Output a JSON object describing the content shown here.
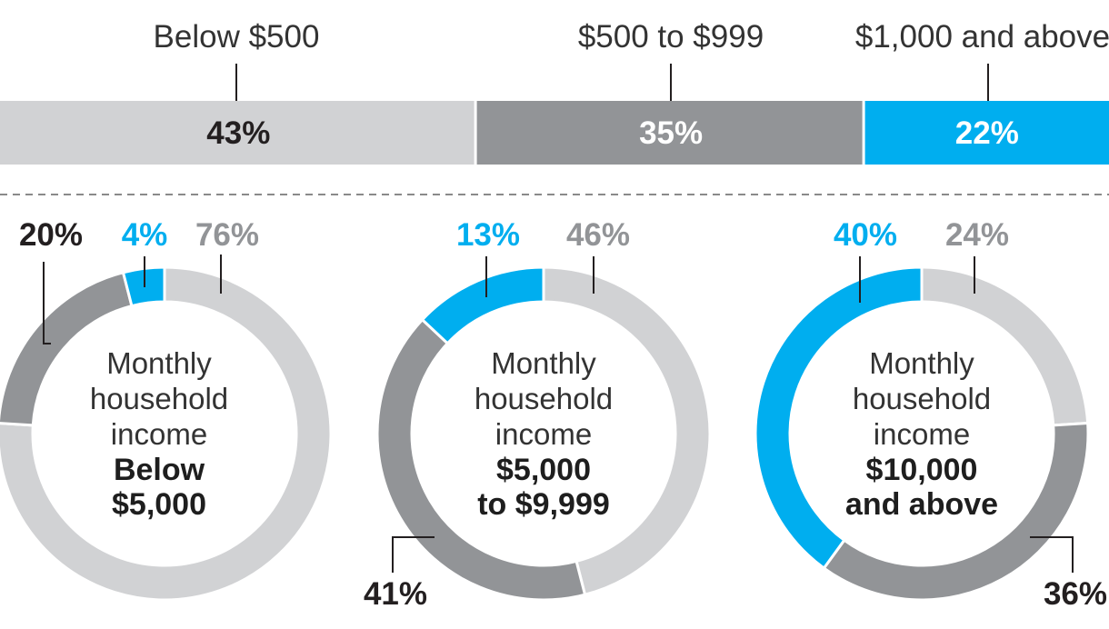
{
  "colors": {
    "light_gray": "#d1d2d4",
    "dark_gray": "#929497",
    "blue": "#00aeef",
    "text_dark": "#231f20"
  },
  "chart_data": [
    {
      "type": "bar",
      "orientation": "horizontal-stacked",
      "categories": [
        "Below $500",
        "$500 to $999",
        "$1,000 and above"
      ],
      "values": [
        43,
        35,
        22
      ],
      "value_labels": [
        "43%",
        "35%",
        "22%"
      ],
      "colors": [
        "#d1d2d4",
        "#929497",
        "#00aeef"
      ],
      "label_colors": [
        "#231f20",
        "#ffffff",
        "#ffffff"
      ]
    },
    {
      "type": "pie",
      "center_text": [
        "Monthly",
        "household",
        "income"
      ],
      "center_bold": [
        "Below",
        "$5,000"
      ],
      "slices": [
        {
          "category": "Below $500",
          "value": 76,
          "label": "76%",
          "color": "#d1d2d4",
          "label_color": "#929497"
        },
        {
          "category": "$500 to $999",
          "value": 20,
          "label": "20%",
          "color": "#929497",
          "label_color": "#231f20"
        },
        {
          "category": "$1,000 and above",
          "value": 4,
          "label": "4%",
          "color": "#00aeef",
          "label_color": "#00aeef"
        }
      ]
    },
    {
      "type": "pie",
      "center_text": [
        "Monthly",
        "household",
        "income"
      ],
      "center_bold": [
        "$5,000",
        "to $9,999"
      ],
      "slices": [
        {
          "category": "Below $500",
          "value": 46,
          "label": "46%",
          "color": "#d1d2d4",
          "label_color": "#929497"
        },
        {
          "category": "$500 to $999",
          "value": 41,
          "label": "41%",
          "color": "#929497",
          "label_color": "#231f20"
        },
        {
          "category": "$1,000 and above",
          "value": 13,
          "label": "13%",
          "color": "#00aeef",
          "label_color": "#00aeef"
        }
      ]
    },
    {
      "type": "pie",
      "center_text": [
        "Monthly",
        "household",
        "income"
      ],
      "center_bold": [
        "$10,000",
        "and above"
      ],
      "slices": [
        {
          "category": "Below $500",
          "value": 24,
          "label": "24%",
          "color": "#d1d2d4",
          "label_color": "#929497"
        },
        {
          "category": "$500 to $999",
          "value": 36,
          "label": "36%",
          "color": "#929497",
          "label_color": "#231f20"
        },
        {
          "category": "$1,000 and above",
          "value": 40,
          "label": "40%",
          "color": "#00aeef",
          "label_color": "#00aeef"
        }
      ]
    }
  ]
}
